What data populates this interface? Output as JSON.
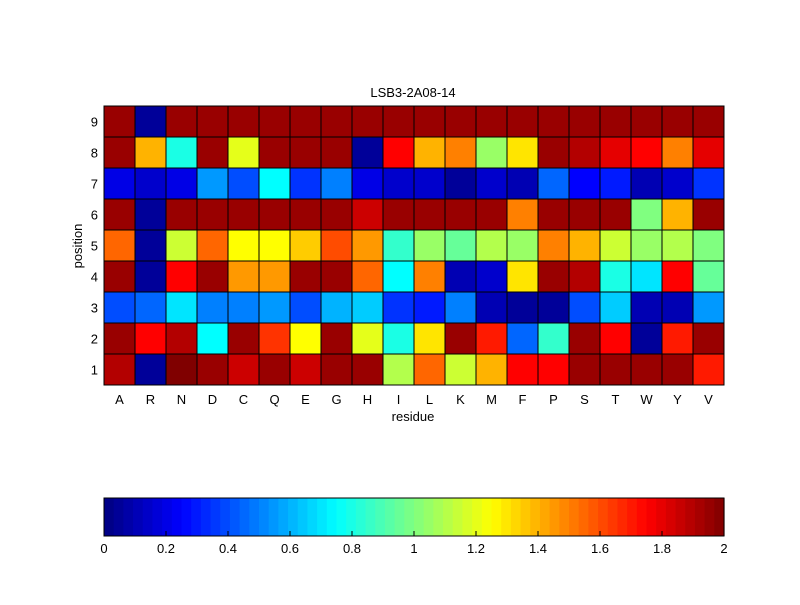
{
  "chart_data": {
    "type": "heatmap",
    "title": "LSB3-2A08-14",
    "xlabel": "residue",
    "ylabel": "position",
    "x_categories": [
      "A",
      "R",
      "N",
      "D",
      "C",
      "Q",
      "E",
      "G",
      "H",
      "I",
      "L",
      "K",
      "M",
      "F",
      "P",
      "S",
      "T",
      "W",
      "Y",
      "V"
    ],
    "y_categories": [
      "1",
      "2",
      "3",
      "4",
      "5",
      "6",
      "7",
      "8",
      "9"
    ],
    "color_range": [
      0,
      2
    ],
    "colormap": "jet",
    "colorbar_ticks": [
      "0",
      "0.2",
      "0.4",
      "0.6",
      "0.8",
      "1",
      "1.2",
      "1.4",
      "1.6",
      "1.8",
      "2"
    ],
    "values": [
      [
        1.9,
        0.05,
        2,
        1.95,
        1.85,
        1.95,
        1.85,
        1.95,
        1.95,
        1.1,
        1.55,
        1.15,
        1.4,
        1.75,
        1.75,
        1.95,
        1.95,
        1.95,
        1.95,
        1.7
      ],
      [
        1.95,
        1.75,
        1.9,
        0.75,
        1.95,
        1.65,
        1.25,
        1.95,
        1.2,
        0.8,
        1.3,
        1.95,
        1.7,
        0.45,
        0.85,
        1.95,
        1.75,
        0.05,
        1.7,
        1.95
      ],
      [
        0.4,
        0.45,
        0.7,
        0.5,
        0.5,
        0.55,
        0.4,
        0.6,
        0.65,
        0.35,
        0.3,
        0.5,
        0.1,
        0.05,
        0.05,
        0.4,
        0.65,
        0.1,
        0.1,
        0.55
      ],
      [
        1.95,
        0.05,
        1.75,
        1.95,
        1.45,
        1.45,
        1.95,
        1.95,
        1.55,
        0.75,
        1.5,
        0.1,
        0.15,
        1.3,
        1.95,
        1.9,
        0.8,
        0.7,
        1.75,
        0.95
      ],
      [
        1.55,
        0.05,
        1.15,
        1.55,
        1.25,
        1.25,
        1.35,
        1.6,
        1.45,
        0.85,
        1.05,
        0.95,
        1.1,
        1.05,
        1.5,
        1.4,
        1.15,
        1.05,
        1.1,
        1.0
      ],
      [
        1.95,
        0.05,
        1.95,
        1.95,
        1.95,
        1.95,
        1.95,
        1.95,
        1.85,
        1.95,
        1.95,
        1.95,
        1.95,
        1.5,
        1.95,
        1.95,
        1.95,
        1.0,
        1.4,
        1.95
      ],
      [
        0.2,
        0.15,
        0.2,
        0.55,
        0.4,
        0.75,
        0.35,
        0.5,
        0.2,
        0.15,
        0.15,
        0.05,
        0.15,
        0.1,
        0.45,
        0.25,
        0.3,
        0.1,
        0.15,
        0.35
      ],
      [
        1.95,
        1.4,
        0.8,
        1.95,
        1.2,
        1.95,
        1.95,
        1.95,
        0.05,
        1.75,
        1.4,
        1.5,
        1.05,
        1.3,
        1.95,
        1.9,
        1.8,
        1.75,
        1.5,
        1.8
      ],
      [
        1.95,
        0.05,
        1.95,
        1.95,
        1.95,
        1.95,
        1.95,
        1.95,
        1.95,
        1.95,
        1.95,
        1.95,
        1.95,
        1.95,
        1.95,
        1.95,
        1.95,
        1.95,
        1.95,
        1.95
      ]
    ]
  }
}
